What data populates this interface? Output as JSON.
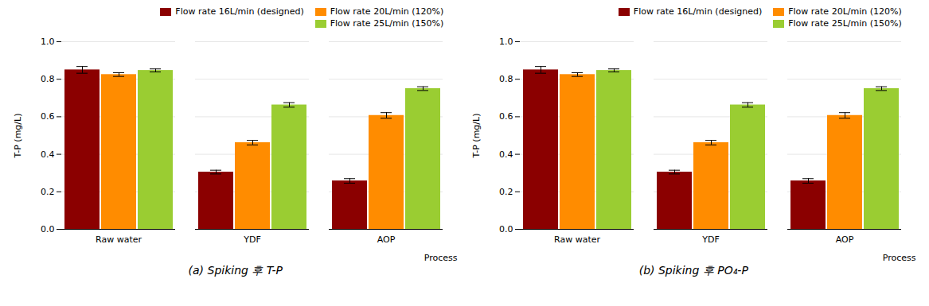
{
  "chart_data": [
    {
      "type": "bar",
      "title": "(a) Spiking 후 T-P",
      "xlabel": "Process",
      "ylabel": "T-P (mg/L)",
      "categories": [
        "Raw water",
        "YDF",
        "AOP"
      ],
      "series": [
        {
          "name": "Flow rate 16L/min (designed)",
          "color": "#8B0000",
          "values": [
            0.85,
            0.305,
            0.258
          ],
          "errors": [
            0.018,
            0.01,
            0.012
          ]
        },
        {
          "name": "Flow rate 20L/min (120%)",
          "color": "#FF8C00",
          "values": [
            0.825,
            0.462,
            0.607
          ],
          "errors": [
            0.01,
            0.012,
            0.015
          ]
        },
        {
          "name": "Flow rate 25L/min (150%)",
          "color": "#9ACD32",
          "values": [
            0.847,
            0.663,
            0.75
          ],
          "errors": [
            0.008,
            0.012,
            0.01
          ]
        }
      ],
      "ylim": [
        0.0,
        1.0
      ],
      "yticks": [
        {
          "value": 0,
          "label": "0.0"
        },
        0.2,
        0.4,
        0.6,
        0.8,
        {
          "value": 1,
          "label": "1.0"
        }
      ],
      "grid": true,
      "legend": "upper right"
    },
    {
      "type": "bar",
      "title": "(b) Spiking 후 PO₄-P",
      "xlabel": "Process",
      "ylabel": "T-P (mg/L)",
      "categories": [
        "Raw water",
        "YDF",
        "AOP"
      ],
      "series": [
        {
          "name": "Flow rate 16L/min (designed)",
          "color": "#8B0000",
          "values": [
            0.85,
            0.305,
            0.258
          ],
          "errors": [
            0.018,
            0.01,
            0.012
          ]
        },
        {
          "name": "Flow rate 20L/min (120%)",
          "color": "#FF8C00",
          "values": [
            0.825,
            0.462,
            0.607
          ],
          "errors": [
            0.01,
            0.012,
            0.015
          ]
        },
        {
          "name": "Flow rate 25L/min (150%)",
          "color": "#9ACD32",
          "values": [
            0.847,
            0.663,
            0.75
          ],
          "errors": [
            0.008,
            0.012,
            0.01
          ]
        }
      ],
      "ylim": [
        0.0,
        1.0
      ],
      "yticks": [
        {
          "value": 0,
          "label": "0.0"
        },
        0.2,
        0.4,
        0.6,
        0.8,
        {
          "value": 1,
          "label": "1.0"
        }
      ],
      "grid": true,
      "legend": "upper right"
    }
  ]
}
